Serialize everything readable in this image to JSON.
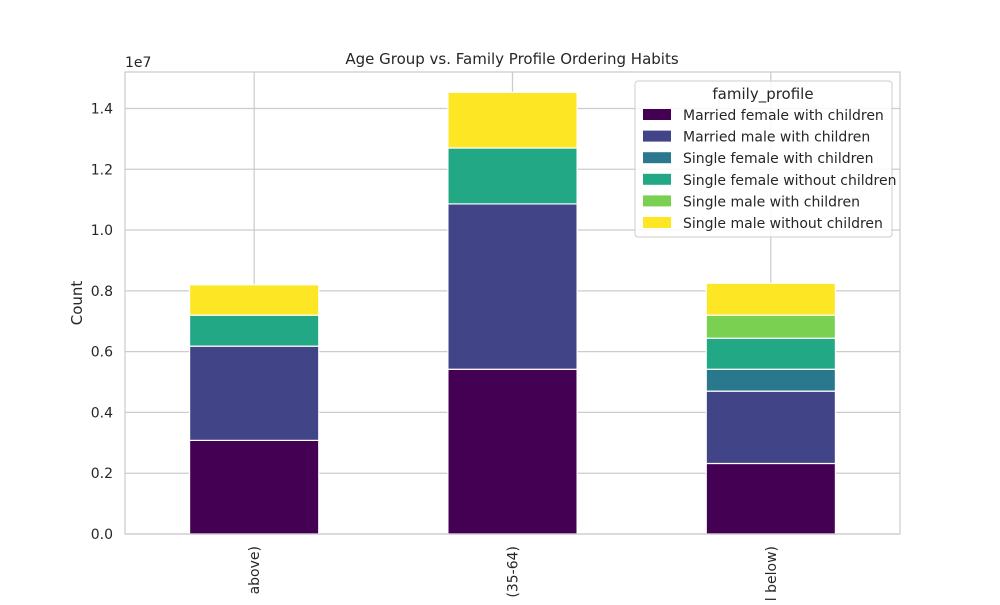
{
  "chart_data": {
    "type": "bar",
    "stacked": true,
    "title": "Age Group vs. Family Profile Ordering Habits",
    "xlabel": "",
    "ylabel": "Count",
    "y_multiplier_label": "1e7",
    "ylim": [
      0,
      15200000
    ],
    "yticks": [
      0,
      2000000,
      4000000,
      6000000,
      8000000,
      10000000,
      12000000,
      14000000
    ],
    "ytick_labels": [
      "0.0",
      "0.2",
      "0.4",
      "0.6",
      "0.8",
      "1.0",
      "1.2",
      "1.4"
    ],
    "categories": [
      "above)",
      "(35-64)",
      "l below)"
    ],
    "grid": true,
    "legend_title": "family_profile",
    "legend_position": "upper right",
    "series": [
      {
        "name": "Married female with children",
        "color": "#440154",
        "values": [
          3080000,
          5420000,
          2320000
        ]
      },
      {
        "name": "Married male with children",
        "color": "#414487",
        "values": [
          3100000,
          5440000,
          2380000
        ]
      },
      {
        "name": "Single female with children",
        "color": "#2a788e",
        "values": [
          0,
          0,
          720000
        ]
      },
      {
        "name": "Single female without children",
        "color": "#22a884",
        "values": [
          1020000,
          1840000,
          1020000
        ]
      },
      {
        "name": "Single male with children",
        "color": "#7ad151",
        "values": [
          0,
          0,
          760000
        ]
      },
      {
        "name": "Single male without children",
        "color": "#fde725",
        "values": [
          1000000,
          1830000,
          1050000
        ]
      }
    ]
  }
}
